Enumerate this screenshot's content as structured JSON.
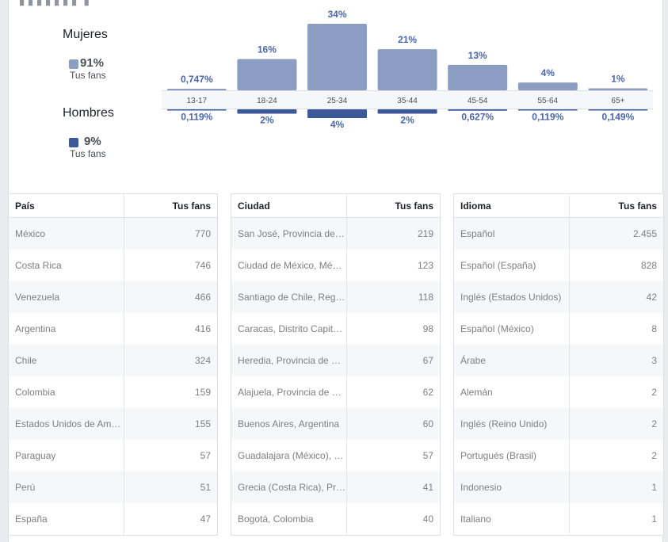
{
  "partial_header": "▗▗▗▗▗▗▗ ▗",
  "colors": {
    "women": "#8b9dc3",
    "men": "#3b5998",
    "label": "#4a66ad"
  },
  "gender": {
    "women": {
      "title": "Mujeres",
      "pct": "91%",
      "sub": "Tus fans"
    },
    "men": {
      "title": "Hombres",
      "pct": "9%",
      "sub": "Tus fans"
    }
  },
  "chart_data": {
    "type": "bar",
    "categories": [
      "13-17",
      "18-24",
      "25-34",
      "35-44",
      "45-54",
      "55-64",
      "65+"
    ],
    "series": [
      {
        "name": "Mujeres",
        "values": [
          0.747,
          16,
          34,
          21,
          13,
          4,
          1
        ],
        "labels": [
          "0,747%",
          "16%",
          "34%",
          "21%",
          "13%",
          "4%",
          "1%"
        ]
      },
      {
        "name": "Hombres",
        "values": [
          0.119,
          2,
          4,
          2,
          0.627,
          0.119,
          0.149
        ],
        "labels": [
          "0,119%",
          "2%",
          "4%",
          "2%",
          "0,627%",
          "0,119%",
          "0,149%"
        ]
      }
    ]
  },
  "tables": [
    {
      "header": [
        "País",
        "Tus fans"
      ],
      "rows": [
        [
          "México",
          "770"
        ],
        [
          "Costa Rica",
          "746"
        ],
        [
          "Venezuela",
          "466"
        ],
        [
          "Argentina",
          "416"
        ],
        [
          "Chile",
          "324"
        ],
        [
          "Colombia",
          "159"
        ],
        [
          "Estados Unidos de Am…",
          "155"
        ],
        [
          "Paraguay",
          "57"
        ],
        [
          "Perú",
          "51"
        ],
        [
          "España",
          "47"
        ]
      ]
    },
    {
      "header": [
        "Ciudad",
        "Tus fans"
      ],
      "rows": [
        [
          "San José, Provincia de…",
          "219"
        ],
        [
          "Ciudad de México, Mé…",
          "123"
        ],
        [
          "Santiago de Chile, Reg…",
          "118"
        ],
        [
          "Caracas, Distrito Capit…",
          "98"
        ],
        [
          "Heredia, Provincia de …",
          "67"
        ],
        [
          "Alajuela, Provincia de …",
          "62"
        ],
        [
          "Buenos Aires, Argentina",
          "60"
        ],
        [
          "Guadalajara (México), …",
          "57"
        ],
        [
          "Grecia (Costa Rica), Pr…",
          "41"
        ],
        [
          "Bogotá, Colombia",
          "40"
        ]
      ]
    },
    {
      "header": [
        "Idioma",
        "Tus fans"
      ],
      "rows": [
        [
          "Español",
          "2.455"
        ],
        [
          "Español (España)",
          "828"
        ],
        [
          "Inglés (Estados Unidos)",
          "42"
        ],
        [
          "Español (México)",
          "8"
        ],
        [
          "Árabe",
          "3"
        ],
        [
          "Alemán",
          "2"
        ],
        [
          "Inglés (Reino Unido)",
          "2"
        ],
        [
          "Portugués (Brasil)",
          "2"
        ],
        [
          "Indonesio",
          "1"
        ],
        [
          "Italiano",
          "1"
        ]
      ]
    }
  ]
}
